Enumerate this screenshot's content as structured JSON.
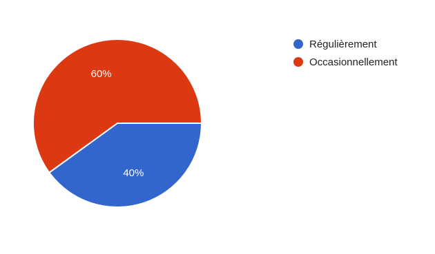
{
  "chart_data": {
    "type": "pie",
    "categories": [
      "Régulièrement",
      "Occasionnellement"
    ],
    "values": [
      40,
      60
    ],
    "data_labels": [
      "40%",
      "60%"
    ],
    "colors": [
      "#3366cc",
      "#dc3912"
    ],
    "title": "",
    "legend_position": "right"
  }
}
